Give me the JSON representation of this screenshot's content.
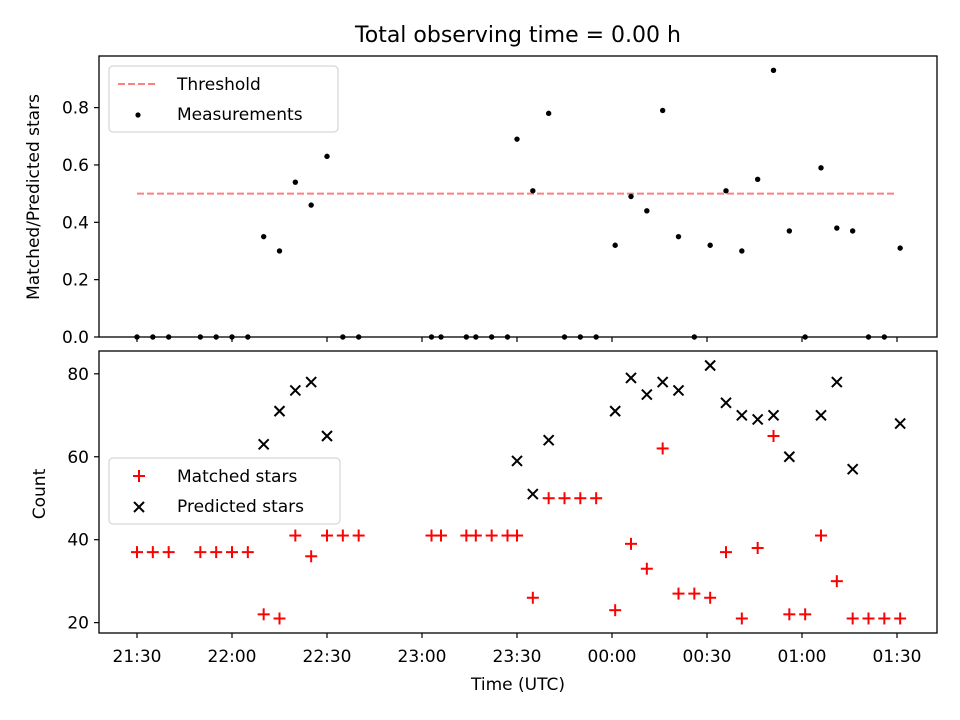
{
  "chart_data": [
    {
      "type": "scatter",
      "title": "Total observing time = 0.00 h",
      "ylabel": "Matched/Predicted stars",
      "xlabel": "",
      "ylim": [
        0,
        0.98
      ],
      "yticks": [
        0.0,
        0.2,
        0.4,
        0.6,
        0.8
      ],
      "ytick_labels": [
        "0.0",
        "0.2",
        "0.4",
        "0.6",
        "0.8"
      ],
      "threshold": {
        "value": 0.5,
        "x_range": [
          "21:30",
          "01:30"
        ],
        "color": "#ff7f7f"
      },
      "legend": {
        "position": "top-left",
        "entries": [
          "Threshold",
          "Measurements"
        ]
      },
      "series": [
        {
          "name": "Measurements",
          "color": "#000000",
          "x": [
            "21:30",
            "21:35",
            "21:40",
            "21:50",
            "21:55",
            "22:00",
            "22:05",
            "22:10",
            "22:15",
            "22:20",
            "22:25",
            "22:30",
            "22:35",
            "22:40",
            "23:03",
            "23:06",
            "23:14",
            "23:17",
            "23:22",
            "23:27",
            "23:30",
            "23:35",
            "23:40",
            "23:45",
            "23:50",
            "23:55",
            "00:01",
            "00:06",
            "00:11",
            "00:16",
            "00:21",
            "00:26",
            "00:31",
            "00:36",
            "00:41",
            "00:46",
            "00:51",
            "00:56",
            "01:01",
            "01:06",
            "01:11",
            "01:16",
            "01:21",
            "01:26",
            "01:31"
          ],
          "y": [
            0,
            0,
            0,
            0,
            0,
            0,
            0,
            0.35,
            0.3,
            0.54,
            0.46,
            0.63,
            0,
            0,
            0,
            0,
            0,
            0,
            0,
            0,
            0.69,
            0.51,
            0.78,
            0,
            0,
            0,
            0.32,
            0.49,
            0.44,
            0.79,
            0.35,
            0,
            0.32,
            0.51,
            0.3,
            0.55,
            0.93,
            0.37,
            0,
            0.59,
            0.38,
            0.37,
            0,
            0,
            0.31
          ]
        }
      ]
    },
    {
      "type": "scatter",
      "title": "",
      "xlabel": "Time (UTC)",
      "ylabel": "Count",
      "ylim": [
        17.5,
        85.5
      ],
      "yticks": [
        20,
        40,
        60,
        80
      ],
      "ytick_labels": [
        "20",
        "40",
        "60",
        "80"
      ],
      "categories": [
        "21:30",
        "22:00",
        "22:30",
        "23:00",
        "23:30",
        "00:00",
        "00:30",
        "01:00",
        "01:30"
      ],
      "legend": {
        "position": "center-left",
        "entries": [
          "Matched stars",
          "Predicted stars"
        ]
      },
      "series": [
        {
          "name": "Matched stars",
          "color": "#ff0000",
          "marker": "+",
          "x": [
            "21:30",
            "21:35",
            "21:40",
            "21:50",
            "21:55",
            "22:00",
            "22:05",
            "22:10",
            "22:15",
            "22:20",
            "22:25",
            "22:30",
            "22:35",
            "22:40",
            "23:03",
            "23:06",
            "23:14",
            "23:17",
            "23:22",
            "23:27",
            "23:30",
            "23:35",
            "23:40",
            "23:45",
            "23:50",
            "23:55",
            "00:01",
            "00:06",
            "00:11",
            "00:16",
            "00:21",
            "00:26",
            "00:31",
            "00:36",
            "00:41",
            "00:46",
            "00:51",
            "00:56",
            "01:01",
            "01:06",
            "01:11",
            "01:16",
            "01:21",
            "01:26",
            "01:31"
          ],
          "y": [
            37,
            37,
            37,
            37,
            37,
            37,
            37,
            22,
            21,
            41,
            36,
            41,
            41,
            41,
            41,
            41,
            41,
            41,
            41,
            41,
            41,
            26,
            50,
            50,
            50,
            50,
            23,
            39,
            33,
            62,
            27,
            27,
            26,
            37,
            21,
            38,
            65,
            22,
            22,
            41,
            30,
            21,
            21,
            21,
            21
          ]
        },
        {
          "name": "Predicted stars",
          "color": "#000000",
          "marker": "x",
          "x": [
            "22:10",
            "22:15",
            "22:20",
            "22:25",
            "22:30",
            "23:30",
            "23:35",
            "23:40",
            "00:01",
            "00:06",
            "00:11",
            "00:16",
            "00:21",
            "00:31",
            "00:36",
            "00:41",
            "00:46",
            "00:51",
            "00:56",
            "01:06",
            "01:11",
            "01:16",
            "01:31"
          ],
          "y": [
            63,
            71,
            76,
            78,
            65,
            59,
            51,
            64,
            71,
            79,
            75,
            78,
            76,
            82,
            73,
            70,
            69,
            70,
            60,
            70,
            78,
            57,
            68
          ]
        }
      ]
    }
  ]
}
